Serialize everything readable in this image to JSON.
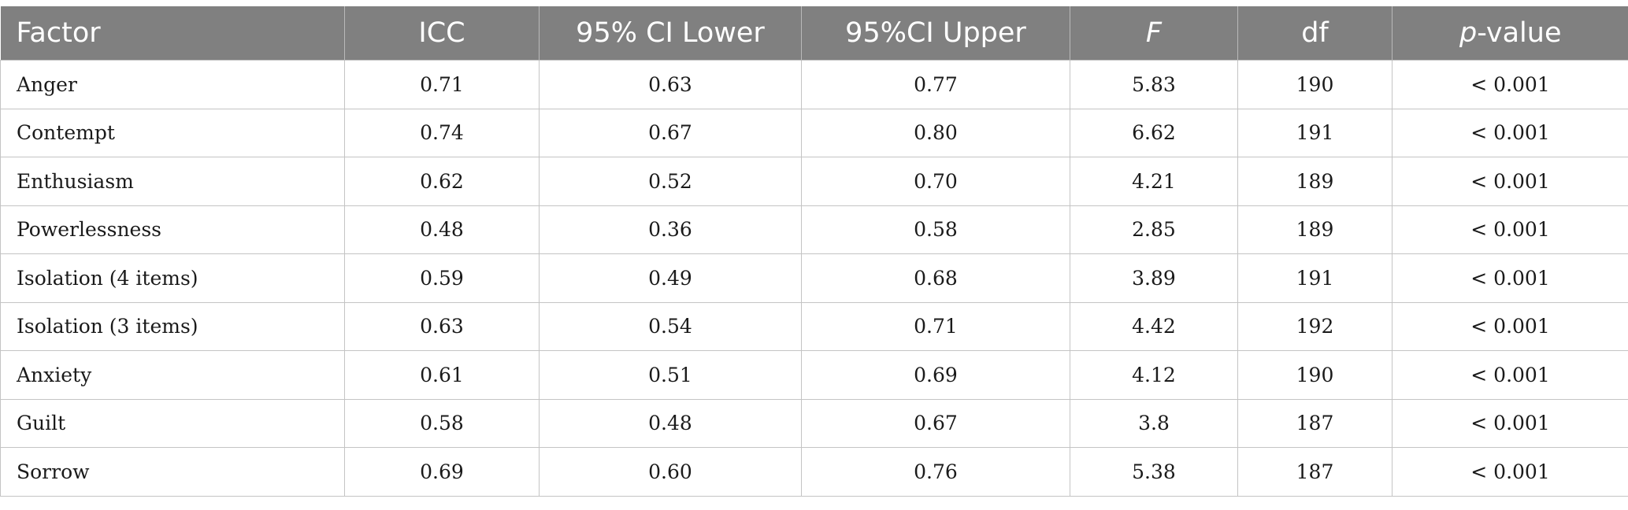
{
  "table": {
    "headers": [
      {
        "pre": "Factor",
        "it": "",
        "post": ""
      },
      {
        "pre": "ICC",
        "it": "",
        "post": ""
      },
      {
        "pre": "95% CI Lower",
        "it": "",
        "post": ""
      },
      {
        "pre": "95%CI Upper",
        "it": "",
        "post": ""
      },
      {
        "pre": "",
        "it": "F",
        "post": ""
      },
      {
        "pre": "df",
        "it": "",
        "post": ""
      },
      {
        "pre": "",
        "it": "p",
        "post": "-value"
      }
    ],
    "rows": [
      [
        "Anger",
        "0.71",
        "0.63",
        "0.77",
        "5.83",
        "190",
        "< 0.001"
      ],
      [
        "Contempt",
        "0.74",
        "0.67",
        "0.80",
        "6.62",
        "191",
        "< 0.001"
      ],
      [
        "Enthusiasm",
        "0.62",
        "0.52",
        "0.70",
        "4.21",
        "189",
        "< 0.001"
      ],
      [
        "Powerlessness",
        "0.48",
        "0.36",
        "0.58",
        "2.85",
        "189",
        "< 0.001"
      ],
      [
        "Isolation (4 items)",
        "0.59",
        "0.49",
        "0.68",
        "3.89",
        "191",
        "< 0.001"
      ],
      [
        "Isolation (3 items)",
        "0.63",
        "0.54",
        "0.71",
        "4.42",
        "192",
        "< 0.001"
      ],
      [
        "Anxiety",
        "0.61",
        "0.51",
        "0.69",
        "4.12",
        "190",
        "< 0.001"
      ],
      [
        "Guilt",
        "0.58",
        "0.48",
        "0.67",
        "3.8",
        "187",
        "< 0.001"
      ],
      [
        "Sorrow",
        "0.69",
        "0.60",
        "0.76",
        "5.38",
        "187",
        "< 0.001"
      ]
    ]
  }
}
